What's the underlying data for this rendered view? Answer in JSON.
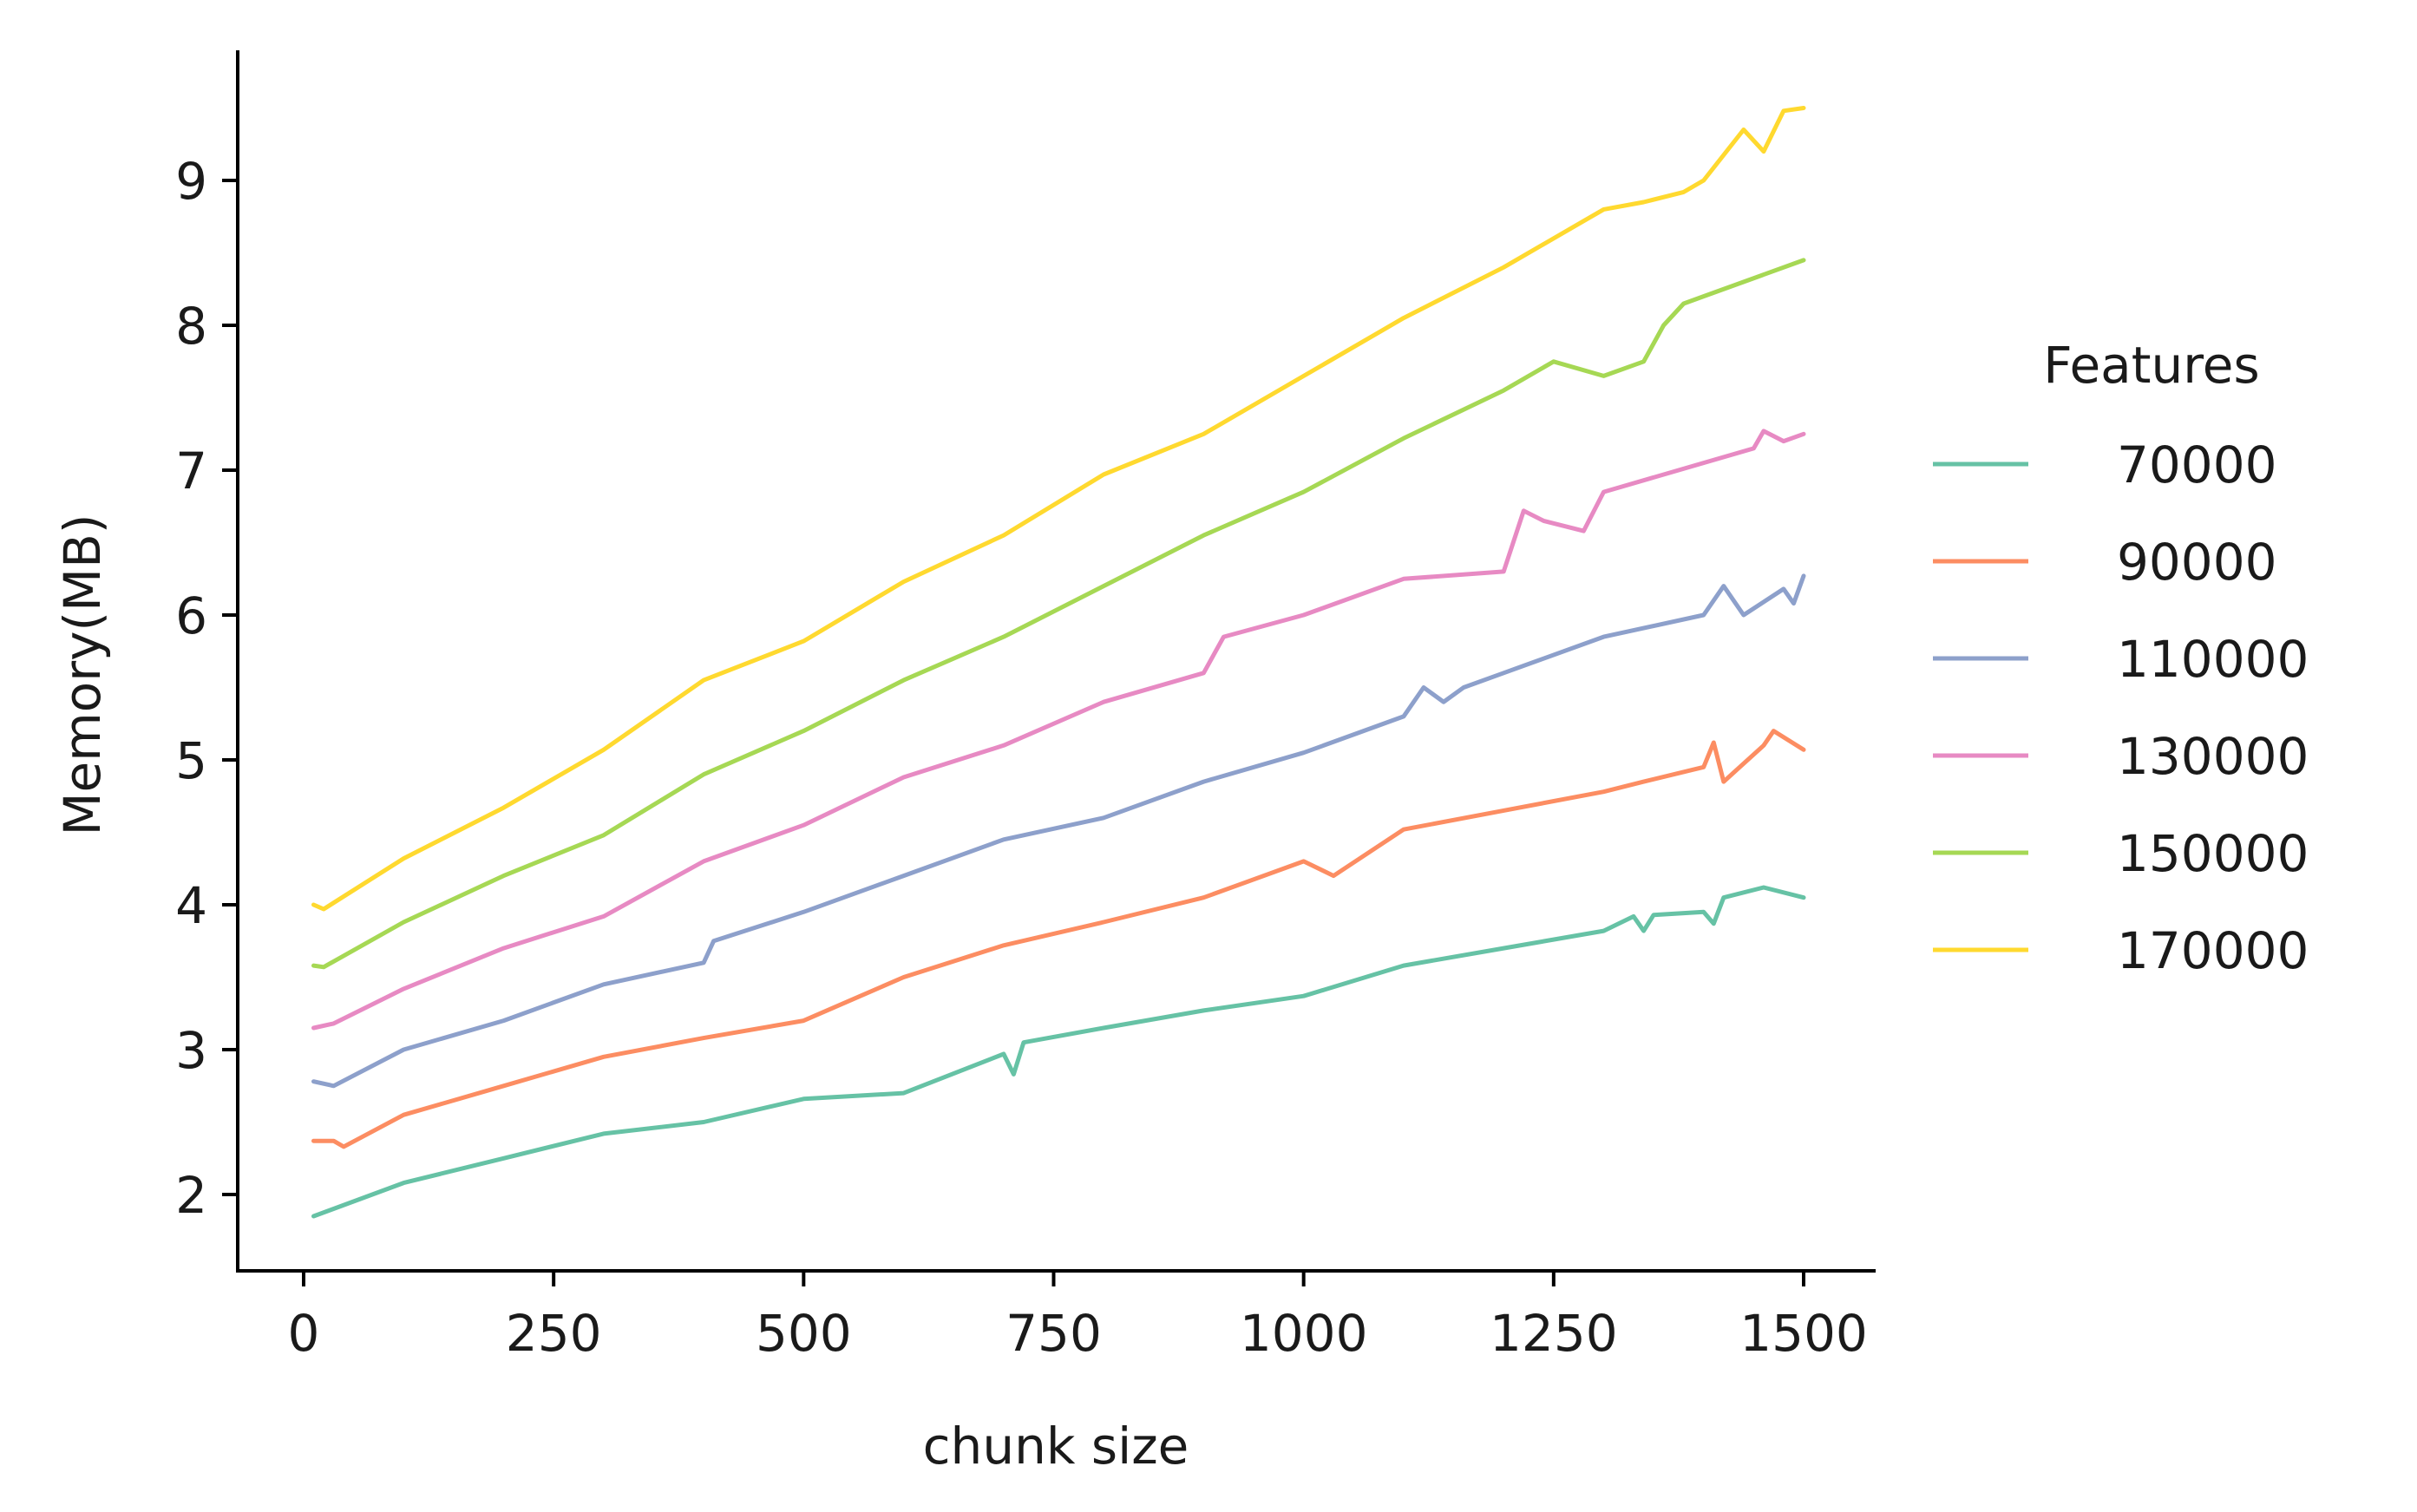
{
  "chart_data": {
    "type": "line",
    "xlabel": "chunk size",
    "ylabel": "Memory(MB)",
    "xlim": [
      -65,
      1565
    ],
    "ylim": [
      1.52,
      9.9
    ],
    "xticks": [
      0,
      250,
      500,
      750,
      1000,
      1250,
      1500
    ],
    "yticks": [
      2,
      3,
      4,
      5,
      6,
      7,
      8,
      9
    ],
    "grid": false,
    "legend": {
      "title": "Features",
      "position": "right"
    },
    "series": [
      {
        "name": "70000",
        "color": "#66c2a5",
        "x": [
          10,
          100,
          200,
          300,
          400,
          500,
          600,
          700,
          710,
          720,
          800,
          900,
          1000,
          1100,
          1200,
          1300,
          1330,
          1340,
          1350,
          1400,
          1410,
          1420,
          1460,
          1500
        ],
        "y": [
          1.85,
          2.08,
          2.25,
          2.42,
          2.5,
          2.66,
          2.7,
          2.97,
          2.83,
          3.05,
          3.15,
          3.27,
          3.37,
          3.58,
          3.7,
          3.82,
          3.92,
          3.82,
          3.93,
          3.95,
          3.87,
          4.05,
          4.12,
          4.05
        ]
      },
      {
        "name": "90000",
        "color": "#fc8d62",
        "x": [
          10,
          30,
          40,
          100,
          200,
          300,
          400,
          500,
          600,
          700,
          800,
          900,
          1000,
          1030,
          1100,
          1200,
          1300,
          1340,
          1400,
          1410,
          1420,
          1460,
          1470,
          1500
        ],
        "y": [
          2.37,
          2.37,
          2.33,
          2.55,
          2.75,
          2.95,
          3.08,
          3.2,
          3.5,
          3.72,
          3.88,
          4.05,
          4.3,
          4.2,
          4.52,
          4.65,
          4.78,
          4.85,
          4.95,
          5.12,
          4.85,
          5.1,
          5.2,
          5.07
        ]
      },
      {
        "name": "110000",
        "color": "#8da0cb",
        "x": [
          10,
          30,
          100,
          200,
          300,
          400,
          410,
          500,
          600,
          700,
          800,
          900,
          1000,
          1100,
          1120,
          1140,
          1160,
          1200,
          1300,
          1400,
          1420,
          1440,
          1480,
          1490,
          1500
        ],
        "y": [
          2.78,
          2.75,
          3.0,
          3.2,
          3.45,
          3.6,
          3.75,
          3.95,
          4.2,
          4.45,
          4.6,
          4.85,
          5.05,
          5.3,
          5.5,
          5.4,
          5.5,
          5.6,
          5.85,
          6.0,
          6.2,
          6.0,
          6.18,
          6.08,
          6.27
        ]
      },
      {
        "name": "130000",
        "color": "#e78ac3",
        "x": [
          10,
          30,
          100,
          200,
          300,
          400,
          500,
          600,
          700,
          800,
          900,
          920,
          1000,
          1100,
          1200,
          1220,
          1240,
          1280,
          1300,
          1400,
          1450,
          1460,
          1480,
          1500
        ],
        "y": [
          3.15,
          3.18,
          3.42,
          3.7,
          3.92,
          4.3,
          4.55,
          4.88,
          5.1,
          5.4,
          5.6,
          5.85,
          6.0,
          6.25,
          6.3,
          6.72,
          6.65,
          6.58,
          6.85,
          7.05,
          7.15,
          7.27,
          7.2,
          7.25
        ]
      },
      {
        "name": "150000",
        "color": "#a6d854",
        "x": [
          10,
          20,
          100,
          200,
          300,
          400,
          500,
          600,
          700,
          800,
          900,
          950,
          1000,
          1100,
          1200,
          1250,
          1300,
          1340,
          1360,
          1380,
          1400,
          1500
        ],
        "y": [
          3.58,
          3.57,
          3.88,
          4.2,
          4.48,
          4.9,
          5.2,
          5.55,
          5.85,
          6.2,
          6.55,
          6.7,
          6.85,
          7.22,
          7.55,
          7.75,
          7.65,
          7.75,
          8.0,
          8.15,
          8.2,
          8.45
        ]
      },
      {
        "name": "170000",
        "color": "#ffd92f",
        "x": [
          10,
          20,
          100,
          200,
          300,
          400,
          500,
          600,
          700,
          800,
          900,
          1000,
          1100,
          1200,
          1300,
          1340,
          1380,
          1400,
          1440,
          1460,
          1480,
          1500
        ],
        "y": [
          4.0,
          3.97,
          4.32,
          4.67,
          5.07,
          5.55,
          5.82,
          6.23,
          6.55,
          6.97,
          7.25,
          7.65,
          8.05,
          8.4,
          8.8,
          8.85,
          8.92,
          9.0,
          9.35,
          9.2,
          9.48,
          9.5
        ]
      }
    ]
  }
}
